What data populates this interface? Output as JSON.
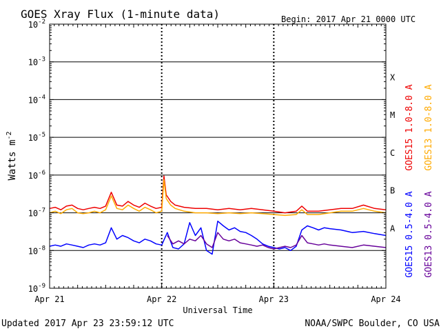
{
  "header": {
    "title": "GOES Xray Flux (1-minute data)",
    "begin": "Begin:  2017 Apr 21 0000 UTC"
  },
  "footer": {
    "updated": "Updated 2017 Apr 23 23:59:12 UTC",
    "credit": "NOAA/SWPC Boulder, CO USA"
  },
  "colors": {
    "goes15_long": "#ee0000",
    "goes13_long": "#ffaa00",
    "goes15_short": "#0000ff",
    "goes13_short": "#660099",
    "frame": "#000000",
    "background": "#ffffff"
  },
  "chart_data": {
    "type": "line",
    "title": "GOES Xray Flux (1-minute data)",
    "xlabel": "Universal Time",
    "ylabel": "Watts m-2",
    "yscale": "log",
    "ylim": [
      1e-09,
      0.01
    ],
    "xlim": [
      0,
      3
    ],
    "x_ticks": [
      {
        "x": 0,
        "label": "Apr 21"
      },
      {
        "x": 1,
        "label": "Apr 22"
      },
      {
        "x": 2,
        "label": "Apr 23"
      },
      {
        "x": 3,
        "label": "Apr 24"
      }
    ],
    "y_ticks": [
      {
        "exp": -2,
        "label": "10",
        "sup": "-2"
      },
      {
        "exp": -3,
        "label": "10",
        "sup": "-3"
      },
      {
        "exp": -4,
        "label": "10",
        "sup": "-4"
      },
      {
        "exp": -5,
        "label": "10",
        "sup": "-5"
      },
      {
        "exp": -6,
        "label": "10",
        "sup": "-6"
      },
      {
        "exp": -7,
        "label": "10",
        "sup": "-7"
      },
      {
        "exp": -8,
        "label": "10",
        "sup": "-8"
      },
      {
        "exp": -9,
        "label": "10",
        "sup": "-9"
      }
    ],
    "flare_classes": [
      {
        "label": "X",
        "y": 0.0004
      },
      {
        "label": "M",
        "y": 4e-05
      },
      {
        "label": "C",
        "y": 4e-06
      },
      {
        "label": "B",
        "y": 4e-07
      },
      {
        "label": "A",
        "y": 4e-08
      }
    ],
    "grid_lines_y": [
      0.001,
      0.0001,
      1e-05,
      1e-06,
      1e-07,
      1e-08
    ],
    "legend_placement": "right-outside",
    "series": [
      {
        "name": "GOES15 1.0-8.0 A",
        "color": "#ee0000",
        "x": [
          0,
          0.05,
          0.1,
          0.15,
          0.2,
          0.25,
          0.3,
          0.35,
          0.4,
          0.45,
          0.5,
          0.55,
          0.6,
          0.65,
          0.7,
          0.75,
          0.8,
          0.85,
          0.9,
          0.95,
          1.0,
          1.02,
          1.04,
          1.08,
          1.12,
          1.2,
          1.3,
          1.4,
          1.5,
          1.6,
          1.7,
          1.8,
          1.9,
          2.0,
          2.1,
          2.2,
          2.25,
          2.3,
          2.4,
          2.5,
          2.6,
          2.7,
          2.8,
          2.9,
          3.0
        ],
        "y": [
          1.3e-07,
          1.4e-07,
          1.2e-07,
          1.5e-07,
          1.6e-07,
          1.3e-07,
          1.2e-07,
          1.3e-07,
          1.4e-07,
          1.3e-07,
          1.5e-07,
          3.5e-07,
          1.6e-07,
          1.5e-07,
          2e-07,
          1.6e-07,
          1.4e-07,
          1.8e-07,
          1.5e-07,
          1.3e-07,
          1.4e-07,
          9.5e-07,
          3e-07,
          2e-07,
          1.6e-07,
          1.4e-07,
          1.3e-07,
          1.3e-07,
          1.2e-07,
          1.3e-07,
          1.2e-07,
          1.3e-07,
          1.2e-07,
          1.1e-07,
          1e-07,
          1.1e-07,
          1.5e-07,
          1.1e-07,
          1.1e-07,
          1.2e-07,
          1.3e-07,
          1.3e-07,
          1.6e-07,
          1.3e-07,
          1.2e-07
        ]
      },
      {
        "name": "GOES13 1.0-8.0 A",
        "color": "#ffaa00",
        "x": [
          0,
          0.05,
          0.1,
          0.15,
          0.2,
          0.25,
          0.3,
          0.35,
          0.4,
          0.45,
          0.5,
          0.55,
          0.6,
          0.65,
          0.7,
          0.75,
          0.8,
          0.85,
          0.9,
          0.95,
          1.0,
          1.02,
          1.04,
          1.08,
          1.12,
          1.2,
          1.3,
          1.4,
          1.5,
          1.6,
          1.7,
          1.8,
          1.9,
          2.0,
          2.1,
          2.2,
          2.25,
          2.3,
          2.4,
          2.5,
          2.6,
          2.7,
          2.8,
          2.9,
          3.0
        ],
        "y": [
          1e-07,
          1.1e-07,
          9.5e-08,
          1.2e-07,
          1.3e-07,
          1e-07,
          9.5e-08,
          1e-07,
          1.1e-07,
          1e-07,
          1.2e-07,
          2.8e-07,
          1.3e-07,
          1.2e-07,
          1.6e-07,
          1.3e-07,
          1.1e-07,
          1.4e-07,
          1.2e-07,
          1e-07,
          1.1e-07,
          7.5e-07,
          2.4e-07,
          1.6e-07,
          1.3e-07,
          1.1e-07,
          1e-07,
          1e-07,
          9.5e-08,
          1e-07,
          9.5e-08,
          1e-07,
          9.5e-08,
          9e-08,
          8.5e-08,
          9e-08,
          1.2e-07,
          9e-08,
          9e-08,
          1e-07,
          1.1e-07,
          1.1e-07,
          1.3e-07,
          1.1e-07,
          1e-07
        ]
      },
      {
        "name": "GOES15 0.5-4.0 A",
        "color": "#0000ff",
        "x": [
          0,
          0.05,
          0.1,
          0.15,
          0.2,
          0.25,
          0.3,
          0.35,
          0.4,
          0.45,
          0.5,
          0.55,
          0.6,
          0.65,
          0.7,
          0.75,
          0.8,
          0.85,
          0.9,
          0.95,
          1.0,
          1.05,
          1.1,
          1.15,
          1.2,
          1.25,
          1.3,
          1.35,
          1.4,
          1.45,
          1.5,
          1.55,
          1.6,
          1.65,
          1.7,
          1.75,
          1.8,
          1.85,
          1.9,
          1.95,
          2.0,
          2.05,
          2.1,
          2.15,
          2.2,
          2.25,
          2.3,
          2.35,
          2.4,
          2.45,
          2.5,
          2.6,
          2.7,
          2.8,
          2.9,
          3.0
        ],
        "y": [
          1.3e-08,
          1.4e-08,
          1.3e-08,
          1.5e-08,
          1.4e-08,
          1.3e-08,
          1.2e-08,
          1.4e-08,
          1.5e-08,
          1.4e-08,
          1.6e-08,
          4e-08,
          2e-08,
          2.5e-08,
          2.2e-08,
          1.8e-08,
          1.6e-08,
          2e-08,
          1.8e-08,
          1.5e-08,
          1.4e-08,
          3e-08,
          1.2e-08,
          1.1e-08,
          1.5e-08,
          5.5e-08,
          2.5e-08,
          4e-08,
          1e-08,
          8e-09,
          6e-08,
          4.5e-08,
          3.5e-08,
          4e-08,
          3.2e-08,
          3e-08,
          2.5e-08,
          2e-08,
          1.5e-08,
          1.3e-08,
          1.2e-08,
          1.1e-08,
          1.2e-08,
          1e-08,
          1.3e-08,
          3.5e-08,
          4.5e-08,
          4e-08,
          3.5e-08,
          4e-08,
          3.8e-08,
          3.5e-08,
          3e-08,
          3.2e-08,
          2.8e-08,
          2.5e-08
        ]
      },
      {
        "name": "GOES13 0.5-4.0 A",
        "color": "#660099",
        "x": [
          1.05,
          1.1,
          1.15,
          1.2,
          1.25,
          1.3,
          1.35,
          1.4,
          1.45,
          1.5,
          1.55,
          1.6,
          1.65,
          1.7,
          1.75,
          1.8,
          1.85,
          1.9,
          1.95,
          2.0,
          2.05,
          2.1,
          2.15,
          2.2,
          2.25,
          2.3,
          2.35,
          2.4,
          2.45,
          2.5,
          2.6,
          2.7,
          2.8,
          2.9,
          3.0
        ],
        "y": [
          2.5e-08,
          1.5e-08,
          1.8e-08,
          1.5e-08,
          2e-08,
          1.8e-08,
          2.5e-08,
          1.5e-08,
          1.2e-08,
          3e-08,
          2e-08,
          1.8e-08,
          2e-08,
          1.6e-08,
          1.5e-08,
          1.4e-08,
          1.3e-08,
          1.4e-08,
          1.2e-08,
          1.1e-08,
          1.2e-08,
          1.3e-08,
          1.2e-08,
          1.4e-08,
          2.5e-08,
          1.6e-08,
          1.5e-08,
          1.4e-08,
          1.5e-08,
          1.4e-08,
          1.3e-08,
          1.2e-08,
          1.4e-08,
          1.3e-08,
          1.2e-08
        ]
      }
    ]
  }
}
